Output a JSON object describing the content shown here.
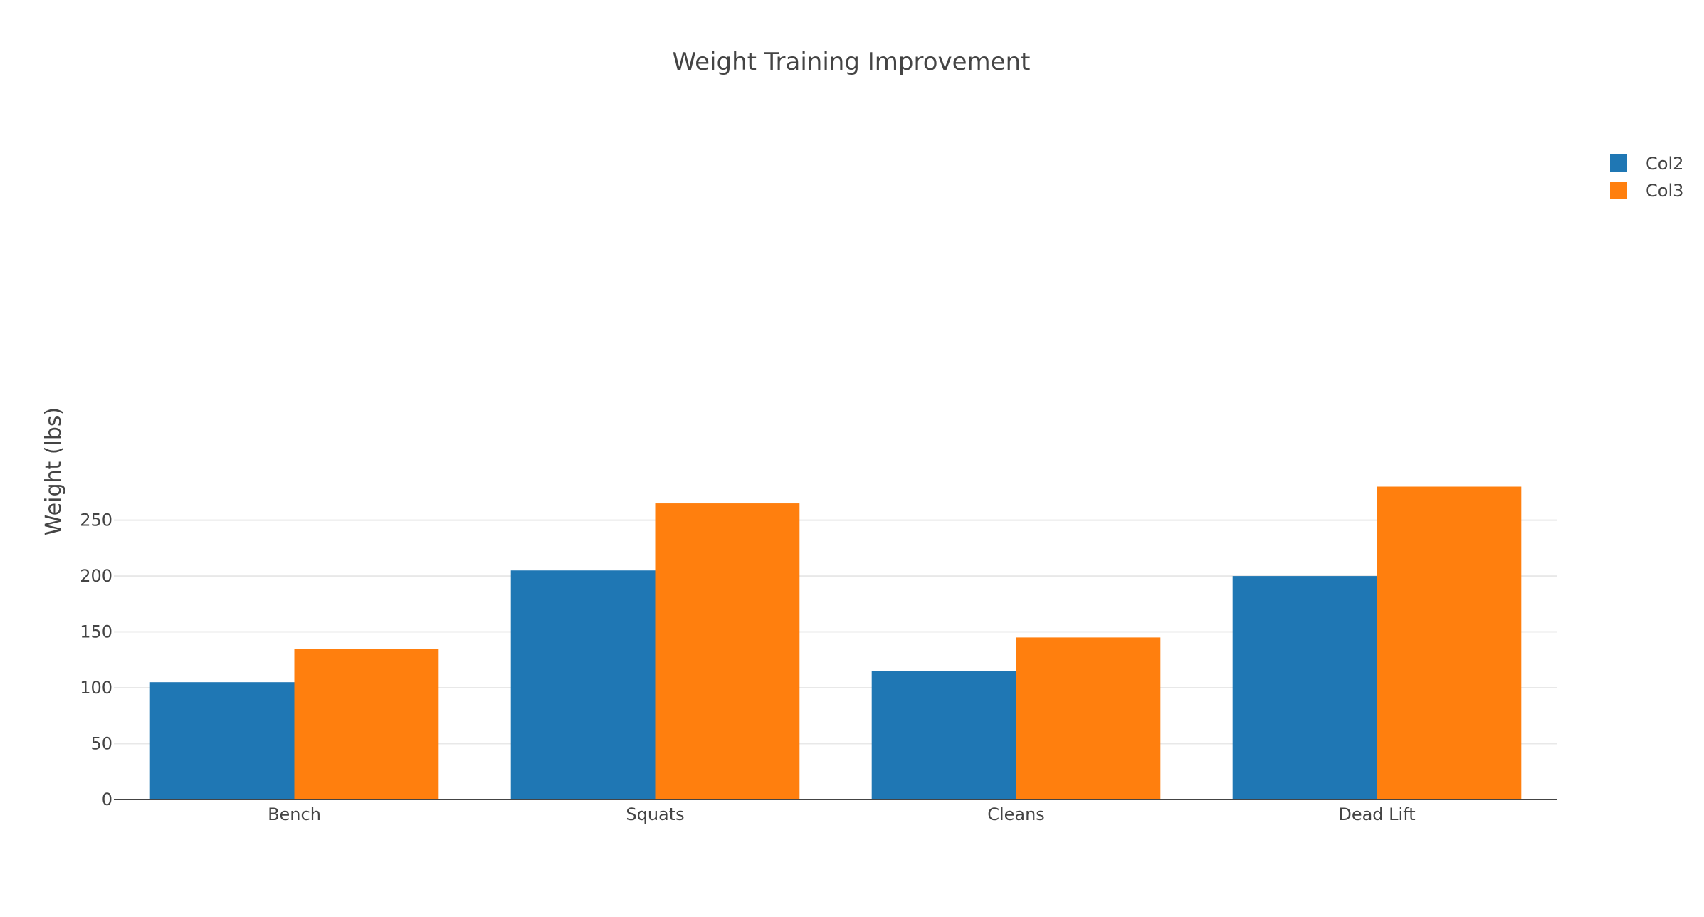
{
  "chart_data": {
    "type": "bar",
    "title": "Weight Training Improvement",
    "xlabel": "",
    "ylabel": "Weight (lbs)",
    "categories": [
      "Bench",
      "Squats",
      "Cleans",
      "Dead Lift"
    ],
    "series": [
      {
        "name": "Col2",
        "values": [
          105,
          205,
          115,
          200
        ],
        "color": "#1f77b4"
      },
      {
        "name": "Col3",
        "values": [
          135,
          265,
          145,
          280
        ],
        "color": "#ff7f0e"
      }
    ],
    "ylim": [
      0,
      280
    ],
    "yticks": [
      0,
      50,
      100,
      150,
      200,
      250
    ],
    "grid": true,
    "legend_position": "top-right"
  }
}
